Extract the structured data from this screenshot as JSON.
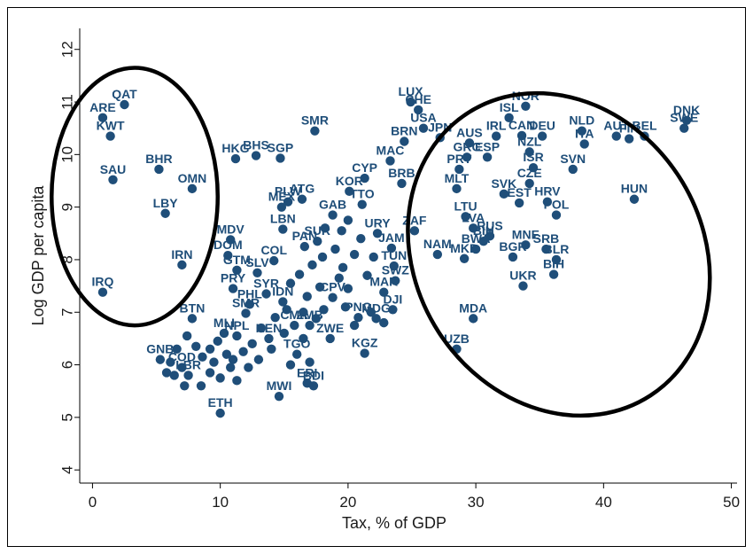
{
  "chart_data": {
    "type": "scatter",
    "xlabel": "Tax, % of GDP",
    "ylabel": "Log GDP per capita",
    "xlim": [
      -1,
      51
    ],
    "ylim": [
      3.75,
      12.4
    ],
    "xticks": [
      0,
      10,
      20,
      30,
      40,
      50
    ],
    "yticks": [
      4,
      5,
      6,
      7,
      8,
      9,
      10,
      11,
      12
    ],
    "grid": false,
    "marker_color": "#1f4e79",
    "ellipse_color": "#000000",
    "points": [
      {
        "label": "QAT",
        "x": 2.5,
        "y": 10.95
      },
      {
        "label": "ARE",
        "x": 0.8,
        "y": 10.7
      },
      {
        "label": "KWT",
        "x": 1.4,
        "y": 10.35
      },
      {
        "label": "BHR",
        "x": 5.2,
        "y": 9.72
      },
      {
        "label": "SAU",
        "x": 1.6,
        "y": 9.52
      },
      {
        "label": "OMN",
        "x": 7.8,
        "y": 9.35
      },
      {
        "label": "LBY",
        "x": 5.7,
        "y": 8.88
      },
      {
        "label": "IRN",
        "x": 7.0,
        "y": 7.9
      },
      {
        "label": "IRQ",
        "x": 0.8,
        "y": 7.38
      },
      {
        "label": "SMR",
        "x": 17.4,
        "y": 10.45
      },
      {
        "label": "HKG",
        "x": 11.2,
        "y": 9.92
      },
      {
        "label": "BHS",
        "x": 12.8,
        "y": 9.98
      },
      {
        "label": "SGP",
        "x": 14.7,
        "y": 9.93
      },
      {
        "label": "LUX",
        "x": 24.9,
        "y": 11.0
      },
      {
        "label": "CHE",
        "x": 25.5,
        "y": 10.85
      },
      {
        "label": "USA",
        "x": 25.9,
        "y": 10.5
      },
      {
        "label": "BRN",
        "x": 24.4,
        "y": 10.25
      },
      {
        "label": "JPN",
        "x": 27.2,
        "y": 10.32
      },
      {
        "label": "AUS",
        "x": 29.5,
        "y": 10.22
      },
      {
        "label": "NOR",
        "x": 33.9,
        "y": 10.92
      },
      {
        "label": "ISL",
        "x": 32.6,
        "y": 10.7
      },
      {
        "label": "IRL",
        "x": 31.6,
        "y": 10.35
      },
      {
        "label": "CAN",
        "x": 33.6,
        "y": 10.36
      },
      {
        "label": "DEU",
        "x": 35.2,
        "y": 10.35
      },
      {
        "label": "NZL",
        "x": 34.2,
        "y": 10.05
      },
      {
        "label": "NLD",
        "x": 38.3,
        "y": 10.45
      },
      {
        "label": "ITA",
        "x": 38.5,
        "y": 10.2
      },
      {
        "label": "AUT",
        "x": 41.0,
        "y": 10.35
      },
      {
        "label": "FIN",
        "x": 42.0,
        "y": 10.3
      },
      {
        "label": "BEL",
        "x": 43.2,
        "y": 10.35
      },
      {
        "label": "DNK",
        "x": 46.5,
        "y": 10.65
      },
      {
        "label": "SWE",
        "x": 46.3,
        "y": 10.5
      },
      {
        "label": "MAC",
        "x": 23.3,
        "y": 9.88
      },
      {
        "label": "CYP",
        "x": 21.3,
        "y": 9.55
      },
      {
        "label": "KOR",
        "x": 20.1,
        "y": 9.3
      },
      {
        "label": "BRB",
        "x": 24.2,
        "y": 9.45
      },
      {
        "label": "GRC",
        "x": 29.3,
        "y": 9.95
      },
      {
        "label": "ESP",
        "x": 30.9,
        "y": 9.95
      },
      {
        "label": "PRT",
        "x": 28.7,
        "y": 9.72
      },
      {
        "label": "MLT",
        "x": 28.5,
        "y": 9.35
      },
      {
        "label": "ISR",
        "x": 34.5,
        "y": 9.75
      },
      {
        "label": "CZE",
        "x": 34.2,
        "y": 9.45
      },
      {
        "label": "SVK",
        "x": 32.2,
        "y": 9.25
      },
      {
        "label": "EST",
        "x": 33.4,
        "y": 9.08
      },
      {
        "label": "SVN",
        "x": 37.6,
        "y": 9.72
      },
      {
        "label": "HRV",
        "x": 35.6,
        "y": 9.1
      },
      {
        "label": "POL",
        "x": 36.3,
        "y": 8.85
      },
      {
        "label": "HUN",
        "x": 42.4,
        "y": 9.15
      },
      {
        "label": "PLW",
        "x": 15.3,
        "y": 9.1
      },
      {
        "label": "ATG",
        "x": 16.4,
        "y": 9.15
      },
      {
        "label": "MEX",
        "x": 14.8,
        "y": 9.0
      },
      {
        "label": "LBN",
        "x": 14.9,
        "y": 8.58
      },
      {
        "label": "GAB",
        "x": 18.8,
        "y": 8.85
      },
      {
        "label": "TTO",
        "x": 21.1,
        "y": 9.05
      },
      {
        "label": "URY",
        "x": 22.3,
        "y": 8.5
      },
      {
        "label": "ZAF",
        "x": 25.2,
        "y": 8.55
      },
      {
        "label": "LTU",
        "x": 29.2,
        "y": 8.82
      },
      {
        "label": "LVA",
        "x": 29.8,
        "y": 8.6
      },
      {
        "label": "RUS",
        "x": 31.1,
        "y": 8.45
      },
      {
        "label": "BIH",
        "x": 30.6,
        "y": 8.35
      },
      {
        "label": "BWA",
        "x": 30.0,
        "y": 8.2
      },
      {
        "label": "MNE",
        "x": 33.9,
        "y": 8.28
      },
      {
        "label": "SRB",
        "x": 35.5,
        "y": 8.2
      },
      {
        "label": "BGR",
        "x": 32.9,
        "y": 8.05
      },
      {
        "label": "BLR",
        "x": 36.3,
        "y": 8.0
      },
      {
        "label": "BIH",
        "x": 36.1,
        "y": 7.72
      },
      {
        "label": "UKR",
        "x": 33.7,
        "y": 7.5
      },
      {
        "label": "NAM",
        "x": 27.0,
        "y": 8.1
      },
      {
        "label": "MKD",
        "x": 29.1,
        "y": 8.02
      },
      {
        "label": "JAM",
        "x": 23.4,
        "y": 8.22
      },
      {
        "label": "TUN",
        "x": 23.6,
        "y": 7.88
      },
      {
        "label": "SWZ",
        "x": 23.7,
        "y": 7.6
      },
      {
        "label": "MAR",
        "x": 22.8,
        "y": 7.38
      },
      {
        "label": "MDV",
        "x": 10.8,
        "y": 8.38
      },
      {
        "label": "DOM",
        "x": 10.6,
        "y": 8.08
      },
      {
        "label": "COL",
        "x": 14.2,
        "y": 7.98
      },
      {
        "label": "SUR",
        "x": 17.6,
        "y": 8.35
      },
      {
        "label": "PAN",
        "x": 16.6,
        "y": 8.25
      },
      {
        "label": "GTM",
        "x": 11.3,
        "y": 7.8
      },
      {
        "label": "SLV",
        "x": 12.9,
        "y": 7.75
      },
      {
        "label": "PRY",
        "x": 11.0,
        "y": 7.45
      },
      {
        "label": "PHL",
        "x": 12.3,
        "y": 7.15
      },
      {
        "label": "SYR",
        "x": 13.6,
        "y": 7.35
      },
      {
        "label": "IDN",
        "x": 14.9,
        "y": 7.2
      },
      {
        "label": "CPV",
        "x": 18.8,
        "y": 7.28
      },
      {
        "label": "PNG",
        "x": 20.8,
        "y": 6.9
      },
      {
        "label": "MDG",
        "x": 22.2,
        "y": 6.88
      },
      {
        "label": "DJI",
        "x": 23.5,
        "y": 7.05
      },
      {
        "label": "SMR",
        "x": 12.0,
        "y": 6.98
      },
      {
        "label": "BTN",
        "x": 7.8,
        "y": 6.88
      },
      {
        "label": "CMR",
        "x": 15.8,
        "y": 6.75
      },
      {
        "label": "ZMB",
        "x": 17.0,
        "y": 6.75
      },
      {
        "label": "ZWE",
        "x": 18.6,
        "y": 6.5
      },
      {
        "label": "NPL",
        "x": 11.3,
        "y": 6.55
      },
      {
        "label": "MLI",
        "x": 10.3,
        "y": 6.6
      },
      {
        "label": "KEN",
        "x": 13.8,
        "y": 6.5
      },
      {
        "label": "TGO",
        "x": 16.0,
        "y": 6.2
      },
      {
        "label": "KGZ",
        "x": 21.3,
        "y": 6.22
      },
      {
        "label": "MDA",
        "x": 29.8,
        "y": 6.88
      },
      {
        "label": "UZB",
        "x": 28.5,
        "y": 6.3
      },
      {
        "label": "GNB",
        "x": 5.3,
        "y": 6.1
      },
      {
        "label": "COD",
        "x": 7.0,
        "y": 5.95
      },
      {
        "label": "LBR",
        "x": 7.5,
        "y": 5.8
      },
      {
        "label": "ERI",
        "x": 16.8,
        "y": 5.65
      },
      {
        "label": "BDI",
        "x": 17.3,
        "y": 5.6
      },
      {
        "label": "MWI",
        "x": 14.6,
        "y": 5.4
      },
      {
        "label": "ETH",
        "x": 10.0,
        "y": 5.08
      },
      {
        "label": "",
        "x": 20.0,
        "y": 8.75
      },
      {
        "label": "",
        "x": 19.5,
        "y": 8.55
      },
      {
        "label": "",
        "x": 18.2,
        "y": 8.6
      },
      {
        "label": "",
        "x": 21.0,
        "y": 8.4
      },
      {
        "label": "",
        "x": 19.0,
        "y": 8.2
      },
      {
        "label": "",
        "x": 20.5,
        "y": 8.1
      },
      {
        "label": "",
        "x": 18.0,
        "y": 8.05
      },
      {
        "label": "",
        "x": 19.6,
        "y": 7.85
      },
      {
        "label": "",
        "x": 21.5,
        "y": 7.7
      },
      {
        "label": "",
        "x": 17.2,
        "y": 7.9
      },
      {
        "label": "",
        "x": 16.2,
        "y": 7.72
      },
      {
        "label": "",
        "x": 15.5,
        "y": 7.55
      },
      {
        "label": "",
        "x": 17.8,
        "y": 7.48
      },
      {
        "label": "",
        "x": 16.8,
        "y": 7.3
      },
      {
        "label": "",
        "x": 15.2,
        "y": 7.05
      },
      {
        "label": "",
        "x": 16.5,
        "y": 7.0
      },
      {
        "label": "",
        "x": 18.1,
        "y": 7.05
      },
      {
        "label": "",
        "x": 17.5,
        "y": 6.88
      },
      {
        "label": "",
        "x": 19.8,
        "y": 7.1
      },
      {
        "label": "",
        "x": 14.3,
        "y": 6.9
      },
      {
        "label": "",
        "x": 13.2,
        "y": 6.7
      },
      {
        "label": "",
        "x": 12.5,
        "y": 6.4
      },
      {
        "label": "",
        "x": 13.0,
        "y": 6.1
      },
      {
        "label": "",
        "x": 11.8,
        "y": 6.25
      },
      {
        "label": "",
        "x": 10.5,
        "y": 6.2
      },
      {
        "label": "",
        "x": 9.8,
        "y": 6.45
      },
      {
        "label": "",
        "x": 9.2,
        "y": 6.3
      },
      {
        "label": "",
        "x": 8.6,
        "y": 6.15
      },
      {
        "label": "",
        "x": 8.1,
        "y": 6.35
      },
      {
        "label": "",
        "x": 7.4,
        "y": 6.55
      },
      {
        "label": "",
        "x": 6.6,
        "y": 6.3
      },
      {
        "label": "",
        "x": 6.1,
        "y": 6.05
      },
      {
        "label": "",
        "x": 5.8,
        "y": 5.85
      },
      {
        "label": "",
        "x": 6.4,
        "y": 5.8
      },
      {
        "label": "",
        "x": 7.2,
        "y": 5.6
      },
      {
        "label": "",
        "x": 8.5,
        "y": 5.6
      },
      {
        "label": "",
        "x": 9.2,
        "y": 5.85
      },
      {
        "label": "",
        "x": 10.0,
        "y": 5.75
      },
      {
        "label": "",
        "x": 10.8,
        "y": 5.95
      },
      {
        "label": "",
        "x": 11.3,
        "y": 5.7
      },
      {
        "label": "",
        "x": 9.5,
        "y": 6.05
      },
      {
        "label": "",
        "x": 11.0,
        "y": 6.1
      },
      {
        "label": "",
        "x": 12.2,
        "y": 5.95
      },
      {
        "label": "",
        "x": 14.0,
        "y": 6.3
      },
      {
        "label": "",
        "x": 15.0,
        "y": 6.6
      },
      {
        "label": "",
        "x": 16.5,
        "y": 6.5
      },
      {
        "label": "",
        "x": 15.5,
        "y": 6.0
      },
      {
        "label": "",
        "x": 17.0,
        "y": 6.05
      },
      {
        "label": "",
        "x": 20.0,
        "y": 7.45
      },
      {
        "label": "",
        "x": 19.3,
        "y": 7.65
      },
      {
        "label": "",
        "x": 22.0,
        "y": 8.05
      },
      {
        "label": "",
        "x": 21.8,
        "y": 7.0
      },
      {
        "label": "",
        "x": 22.8,
        "y": 6.8
      },
      {
        "label": "",
        "x": 20.5,
        "y": 6.75
      }
    ],
    "ellipses": [
      {
        "cx": 3.3,
        "cy": 9.2,
        "rx": 6.5,
        "ry": 2.45,
        "rotate": 0
      },
      {
        "cx": 36.5,
        "cy": 8.1,
        "rx": 11.2,
        "ry": 3.2,
        "rotate": -33
      }
    ]
  }
}
